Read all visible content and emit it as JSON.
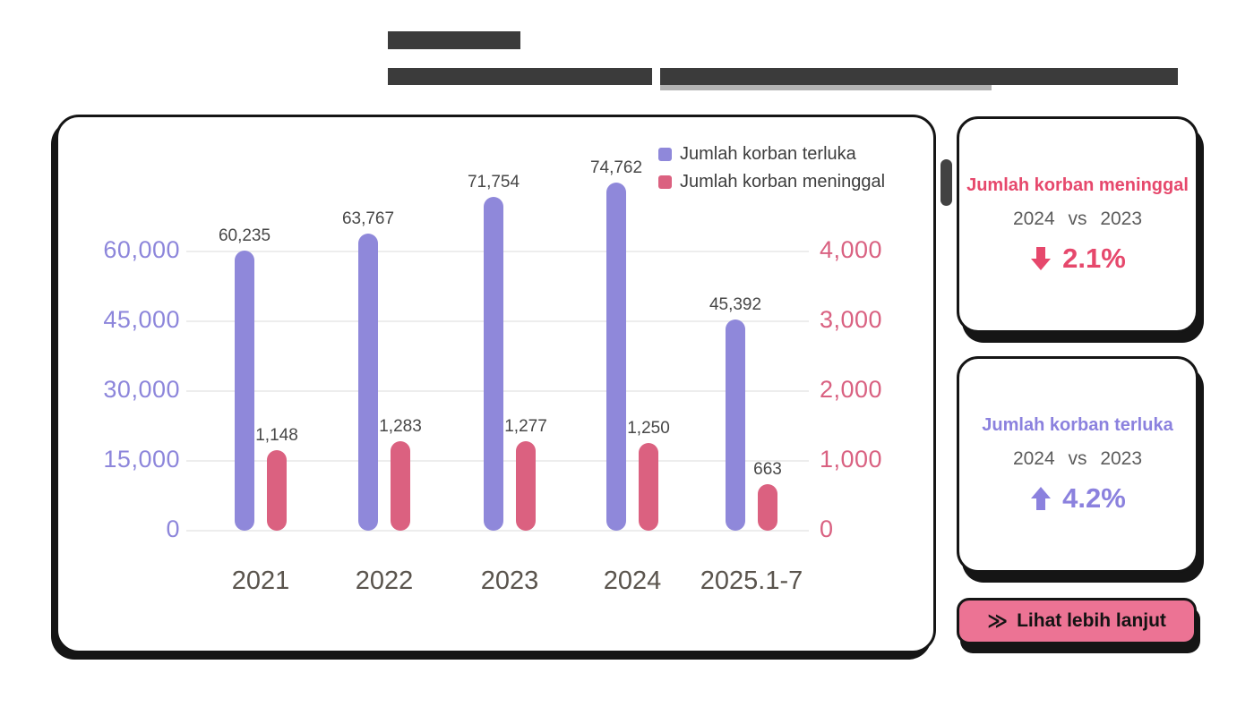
{
  "chart_data": {
    "type": "bar",
    "title": "",
    "categories": [
      "2021",
      "2022",
      "2023",
      "2024",
      "2025.1-7"
    ],
    "series": [
      {
        "key": "terluka",
        "name": "Jumlah korban terluka",
        "axis": "left",
        "color": "#8F88DA",
        "values": [
          60235,
          63767,
          71754,
          74762,
          45392
        ],
        "value_labels": [
          "60,235",
          "63,767",
          "71,754",
          "74,762",
          "45,392"
        ]
      },
      {
        "key": "meninggal",
        "name": "Jumlah korban meninggal",
        "axis": "right",
        "color": "#DB6180",
        "values": [
          1148,
          1283,
          1277,
          1250,
          663
        ],
        "value_labels": [
          "1,148",
          "1,283",
          "1,277",
          "1,250",
          "663"
        ]
      }
    ],
    "left_axis": {
      "color": "#8D86DB",
      "ticks": [
        0,
        15000,
        30000,
        45000,
        60000
      ],
      "tick_labels": [
        "0",
        "15,000",
        "30,000",
        "45,000",
        "60,000"
      ],
      "unit_per_grid": 15000,
      "max": 75000
    },
    "right_axis": {
      "color": "#D96181",
      "ticks": [
        0,
        1000,
        2000,
        3000,
        4000
      ],
      "tick_labels": [
        "0",
        "1,000",
        "2,000",
        "3,000",
        "4,000"
      ],
      "unit_per_grid": 1000,
      "max": 5000
    },
    "grid": true,
    "legend_position": "top-right"
  },
  "stat_cards": [
    {
      "id": "meninggal",
      "title": "Jumlah korban meninggal",
      "comparison": "2024 vs 2023",
      "direction": "down",
      "change": "2.1%",
      "color": "#E6486C"
    },
    {
      "id": "terluka",
      "title": "Jumlah korban terluka",
      "comparison": "2024 vs 2023",
      "direction": "up",
      "change": "4.2%",
      "color": "#8B81DE"
    }
  ],
  "button": {
    "label": "Lihat lebih lanjut",
    "icon": "double-chevron-right",
    "color": "#EC7394"
  }
}
